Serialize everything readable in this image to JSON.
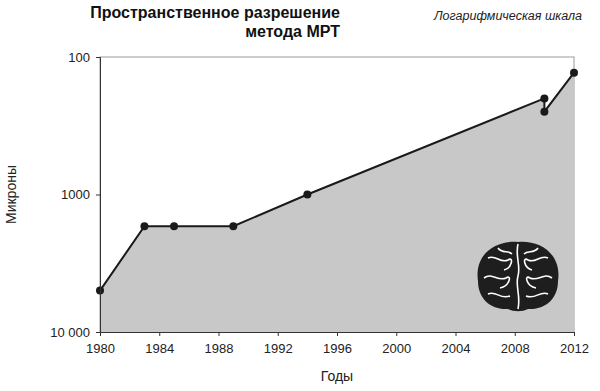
{
  "chart_data": {
    "type": "area",
    "title": "Пространственное разрешение\nметода МРТ",
    "annotations": [
      "Логарифмическая шкала"
    ],
    "x_label": "Годы",
    "y_label": "Микроны",
    "x": [
      1980,
      1983,
      1985,
      1989,
      1994,
      2010,
      2010,
      2012
    ],
    "values": [
      5000,
      1700,
      1700,
      1700,
      1000,
      200,
      250,
      130
    ],
    "color": "#c8c8c8",
    "marker": "circle",
    "line_style": "solid",
    "log": "y",
    "grid": false,
    "xlim": [
      1980,
      2012
    ],
    "xticks": [
      1980,
      1984,
      1988,
      1992,
      1996,
      2000,
      2004,
      2008,
      2012
    ],
    "ylim": [
      10000,
      100
    ],
    "yticks": [
      100,
      1000,
      {
        "value": 10000,
        "label": "10 000"
      }
    ]
  }
}
